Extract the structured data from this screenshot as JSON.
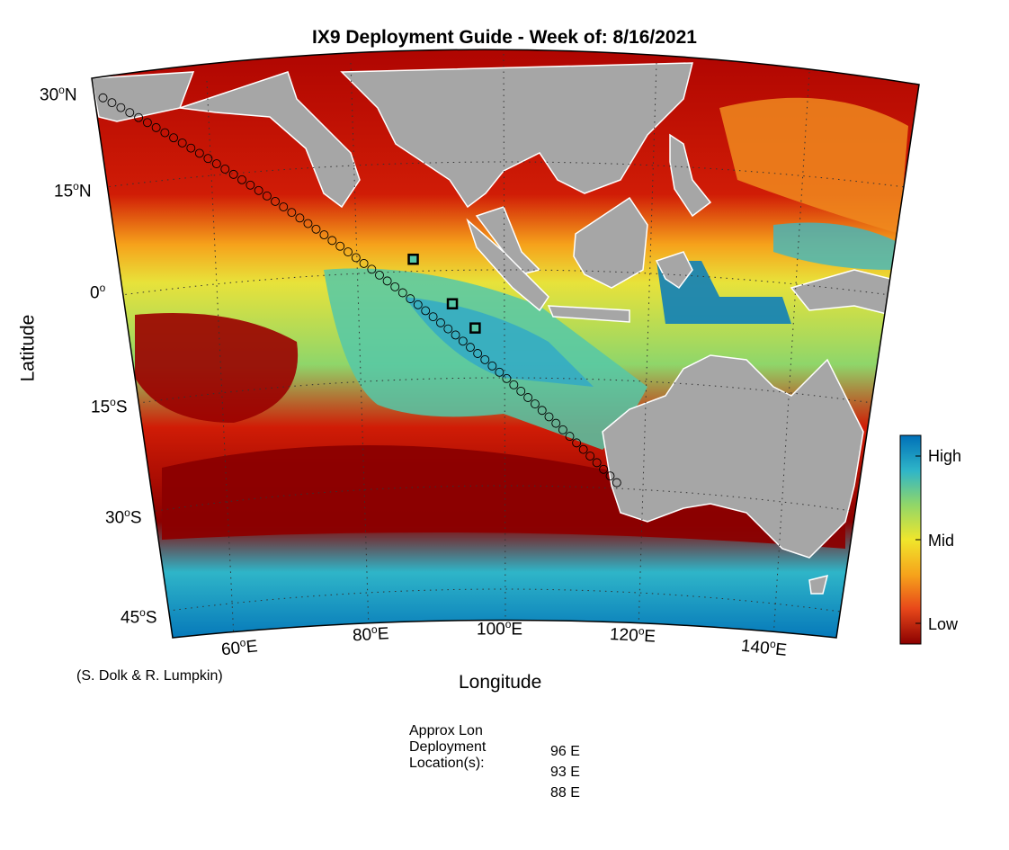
{
  "title": "IX9 Deployment Guide - Week of: 8/16/2021",
  "map": {
    "lat_labels": [
      {
        "deg": "30",
        "hemi": "N"
      },
      {
        "deg": "15",
        "hemi": "N"
      },
      {
        "deg": "0",
        "hemi": ""
      },
      {
        "deg": "15",
        "hemi": "S"
      },
      {
        "deg": "30",
        "hemi": "S"
      },
      {
        "deg": "45",
        "hemi": "S"
      }
    ],
    "lon_labels": [
      {
        "deg": "60",
        "hemi": "E"
      },
      {
        "deg": "80",
        "hemi": "E"
      },
      {
        "deg": "100",
        "hemi": "E"
      },
      {
        "deg": "120",
        "hemi": "E"
      },
      {
        "deg": "140",
        "hemi": "E"
      }
    ],
    "xlabel": "Longitude",
    "ylabel": "Latitude",
    "lon_range": [
      50,
      150
    ],
    "lat_range": [
      -50,
      30
    ],
    "projection": "conic",
    "grid": true,
    "colors": {
      "ocean_low": "#8b0000",
      "ocean_mid": "#f5e629",
      "ocean_high": "#0070b8",
      "land": "#a6a6a6",
      "track": "#000000",
      "deployment_marker": "#000000"
    },
    "track": {
      "start": {
        "lon": 51,
        "lat": 27
      },
      "end": {
        "lon": 116,
        "lat": -32
      }
    },
    "deployment_markers": [
      {
        "lon": 88,
        "lat": -0.5
      },
      {
        "lon": 93,
        "lat": -7
      },
      {
        "lon": 96,
        "lat": -10.5
      }
    ]
  },
  "colorbar": {
    "labels": [
      "High",
      "Mid",
      "Low"
    ],
    "colors": [
      "#0070b8",
      "#2fb5c8",
      "#8fd66a",
      "#f0e62c",
      "#f6a21b",
      "#e8481a",
      "#8b0000"
    ]
  },
  "credit": "(S. Dolk & R. Lumpkin)",
  "deployment": {
    "label_lines": [
      "Approx Lon",
      "Deployment",
      "Location(s):"
    ],
    "values": [
      "96 E",
      "93 E",
      "88 E"
    ]
  }
}
